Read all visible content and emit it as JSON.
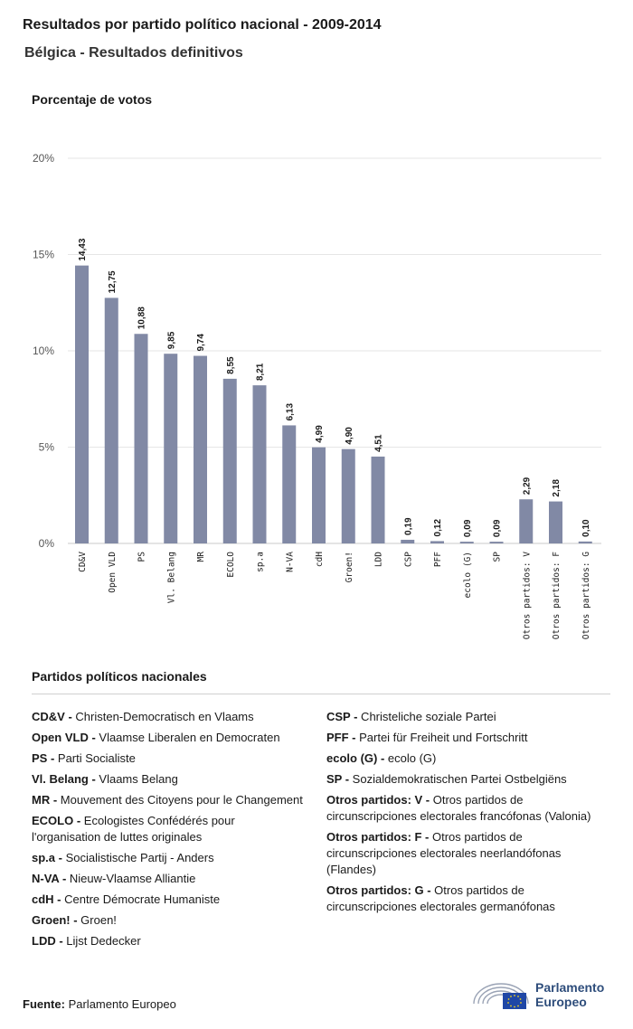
{
  "header": {
    "title": "Resultados por partido político nacional - 2009-2014",
    "subtitle": "Bélgica - Resultados definitivos",
    "chart_label": "Porcentaje de votos"
  },
  "chart_data": {
    "type": "bar",
    "ylabel": "Porcentaje de votos",
    "ylim": [
      0,
      20
    ],
    "yticks": [
      "0%",
      "5%",
      "10%",
      "15%",
      "20%"
    ],
    "ytick_values": [
      0,
      5,
      10,
      15,
      20
    ],
    "grid": true,
    "bar_color": "#8189a5",
    "categories": [
      "CD&V",
      "Open VLD",
      "PS",
      "Vl. Belang",
      "MR",
      "ECOLO",
      "sp.a",
      "N-VA",
      "cdH",
      "Groen!",
      "LDD",
      "CSP",
      "PFF",
      "ecolo (G)",
      "SP",
      "Otros partidos: V",
      "Otros partidos: F",
      "Otros partidos: G"
    ],
    "values": [
      14.43,
      12.75,
      10.88,
      9.85,
      9.74,
      8.55,
      8.21,
      6.13,
      4.99,
      4.9,
      4.51,
      0.19,
      0.12,
      0.09,
      0.09,
      2.29,
      2.18,
      0.1
    ],
    "labels": [
      "14,43",
      "12,75",
      "10,88",
      "9,85",
      "9,74",
      "8,55",
      "8,21",
      "6,13",
      "4,99",
      "4,90",
      "4,51",
      "0,19",
      "0,12",
      "0,09",
      "0,09",
      "2,29",
      "2,18",
      "0,10"
    ]
  },
  "legend": {
    "heading": "Partidos políticos nacionales",
    "left": [
      {
        "abbr": "CD&V -",
        "name": "Christen-Democratisch en Vlaams"
      },
      {
        "abbr": "Open VLD -",
        "name": "Vlaamse Liberalen en Democraten"
      },
      {
        "abbr": "PS -",
        "name": "Parti Socialiste"
      },
      {
        "abbr": "Vl. Belang -",
        "name": "Vlaams Belang"
      },
      {
        "abbr": "MR -",
        "name": "Mouvement des Citoyens pour le Changement"
      },
      {
        "abbr": "ECOLO -",
        "name": "Ecologistes Confédérés pour l'organisation de luttes originales"
      },
      {
        "abbr": "sp.a -",
        "name": "Socialistische Partij - Anders"
      },
      {
        "abbr": "N-VA -",
        "name": "Nieuw-Vlaamse Alliantie"
      },
      {
        "abbr": "cdH -",
        "name": "Centre Démocrate Humaniste"
      },
      {
        "abbr": "Groen! -",
        "name": "Groen!"
      },
      {
        "abbr": "LDD -",
        "name": "Lijst Dedecker"
      }
    ],
    "right": [
      {
        "abbr": "CSP -",
        "name": "Christeliche soziale Partei"
      },
      {
        "abbr": "PFF -",
        "name": "Partei für Freiheit und Fortschritt"
      },
      {
        "abbr": "ecolo (G) -",
        "name": "ecolo (G)"
      },
      {
        "abbr": "SP -",
        "name": "Sozialdemokratischen Partei Ostbelgiëns"
      },
      {
        "abbr": "Otros partidos: V -",
        "name": "Otros partidos de circunscripciones electorales francófonas (Valonia)"
      },
      {
        "abbr": "Otros partidos: F -",
        "name": "Otros partidos de circunscripciones electorales neerlandófonas (Flandes)"
      },
      {
        "abbr": "Otros partidos: G -",
        "name": "Otros partidos de circunscripciones electorales germanófonas"
      }
    ]
  },
  "footer": {
    "source_label": "Fuente:",
    "source_text": "Parlamento Europeo",
    "logo_line1": "Parlamento",
    "logo_line2": "Europeo",
    "logo_icon": "european-parliament-hemicycle-icon",
    "logo_color": "#2e4d7b",
    "flag_color": "#1f47a6"
  }
}
